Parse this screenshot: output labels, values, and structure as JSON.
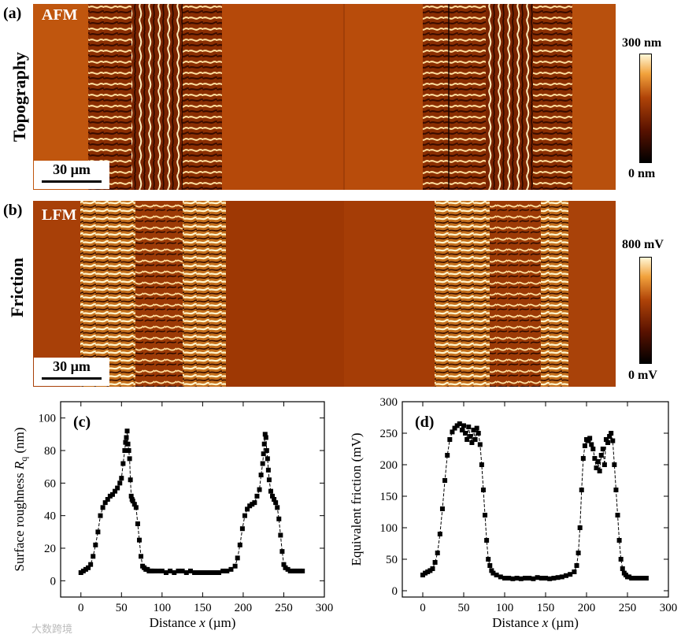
{
  "panel_a": {
    "label": "(a)",
    "side_title": "Topography",
    "image_title": "AFM",
    "scale_bar": "30 µm",
    "colorbar_max": "300 nm",
    "colorbar_min": "0 nm"
  },
  "panel_b": {
    "label": "(b)",
    "side_title": "Friction",
    "image_title": "LFM",
    "scale_bar": "30 µm",
    "colorbar_max": "800 mV",
    "colorbar_min": "0 mV"
  },
  "colors": {
    "afm_dark": "#6b1d00",
    "afm_mid": "#b24a0a",
    "afm_light": "#ffe6a8",
    "lfm_mid": "#a63e07"
  },
  "watermark": "大数跨境",
  "chart_data": [
    {
      "id": "c",
      "panel_label": "(c)",
      "type": "scatter",
      "title": "",
      "xlabel_pre": "Distance ",
      "xlabel_var": "x",
      "xlabel_post": " (µm)",
      "ylabel_pre": "Surface roughness ",
      "ylabel_var": "R",
      "ylabel_sub": "q",
      "ylabel_post": " (nm)",
      "xlim": [
        -25,
        300
      ],
      "ylim": [
        -10,
        110
      ],
      "xticks": [
        0,
        50,
        100,
        150,
        200,
        250,
        300
      ],
      "yticks": [
        0,
        20,
        40,
        60,
        80,
        100
      ],
      "x": [
        0,
        3,
        6,
        9,
        12,
        15,
        18,
        21,
        24,
        27,
        30,
        33,
        36,
        39,
        42,
        45,
        48,
        50,
        52,
        54,
        55,
        56,
        57,
        58,
        59,
        60,
        61,
        62,
        63,
        64,
        66,
        68,
        70,
        72,
        74,
        76,
        78,
        80,
        82,
        84,
        86,
        88,
        90,
        95,
        100,
        105,
        110,
        115,
        120,
        125,
        130,
        135,
        140,
        145,
        150,
        155,
        160,
        165,
        170,
        175,
        180,
        185,
        190,
        193,
        196,
        199,
        202,
        205,
        208,
        211,
        214,
        217,
        220,
        222,
        224,
        225,
        226,
        227,
        228,
        229,
        230,
        231,
        232,
        234,
        236,
        238,
        240,
        242,
        244,
        246,
        248,
        250,
        252,
        255,
        258,
        261,
        264,
        267,
        270,
        273
      ],
      "y": [
        5,
        6,
        7,
        8,
        10,
        15,
        22,
        30,
        40,
        45,
        48,
        50,
        52,
        53,
        55,
        57,
        60,
        63,
        72,
        80,
        85,
        88,
        92,
        84,
        80,
        75,
        62,
        52,
        50,
        49,
        47,
        45,
        35,
        25,
        15,
        9,
        8,
        7,
        7,
        6,
        6,
        6,
        6,
        6,
        6,
        5,
        6,
        5,
        6,
        6,
        5,
        6,
        5,
        5,
        5,
        5,
        5,
        5,
        5,
        6,
        6,
        7,
        9,
        14,
        22,
        32,
        40,
        44,
        46,
        47,
        48,
        52,
        56,
        65,
        72,
        78,
        84,
        90,
        88,
        80,
        75,
        68,
        62,
        55,
        52,
        50,
        48,
        45,
        38,
        28,
        18,
        10,
        8,
        7,
        6,
        6,
        6,
        6,
        6,
        6
      ]
    },
    {
      "id": "d",
      "panel_label": "(d)",
      "type": "scatter",
      "title": "",
      "xlabel_pre": "Distance ",
      "xlabel_var": "x",
      "xlabel_post": " (µm)",
      "ylabel_pre": "Equivalent friction (mV)",
      "ylabel_var": "",
      "ylabel_sub": "",
      "ylabel_post": "",
      "xlim": [
        -25,
        300
      ],
      "ylim": [
        -10,
        300
      ],
      "xticks": [
        0,
        50,
        100,
        150,
        200,
        250,
        300
      ],
      "yticks": [
        0,
        50,
        100,
        150,
        200,
        250,
        300
      ],
      "x": [
        0,
        3,
        6,
        9,
        12,
        15,
        18,
        21,
        24,
        27,
        30,
        33,
        36,
        39,
        42,
        45,
        48,
        50,
        52,
        54,
        56,
        58,
        60,
        62,
        64,
        66,
        68,
        70,
        72,
        74,
        76,
        78,
        80,
        82,
        84,
        86,
        90,
        95,
        100,
        105,
        110,
        115,
        120,
        125,
        130,
        135,
        140,
        145,
        150,
        155,
        160,
        165,
        170,
        175,
        180,
        185,
        188,
        190,
        192,
        194,
        196,
        198,
        200,
        202,
        204,
        206,
        208,
        210,
        212,
        214,
        216,
        218,
        220,
        222,
        224,
        226,
        228,
        230,
        232,
        234,
        236,
        238,
        240,
        242,
        244,
        246,
        248,
        250,
        252,
        255,
        258,
        261,
        264,
        267,
        270,
        273
      ],
      "y": [
        25,
        28,
        30,
        32,
        35,
        45,
        60,
        90,
        130,
        175,
        215,
        240,
        252,
        258,
        262,
        265,
        255,
        262,
        250,
        240,
        260,
        245,
        235,
        255,
        240,
        258,
        250,
        232,
        200,
        160,
        120,
        80,
        50,
        40,
        32,
        28,
        25,
        22,
        20,
        20,
        19,
        20,
        19,
        20,
        20,
        19,
        21,
        20,
        20,
        19,
        20,
        21,
        22,
        24,
        26,
        30,
        40,
        60,
        100,
        160,
        210,
        230,
        240,
        238,
        242,
        232,
        225,
        210,
        195,
        205,
        190,
        215,
        225,
        200,
        240,
        235,
        245,
        250,
        238,
        200,
        160,
        120,
        80,
        50,
        35,
        28,
        25,
        22,
        22,
        20,
        20,
        20,
        20,
        20,
        20,
        20
      ]
    }
  ]
}
